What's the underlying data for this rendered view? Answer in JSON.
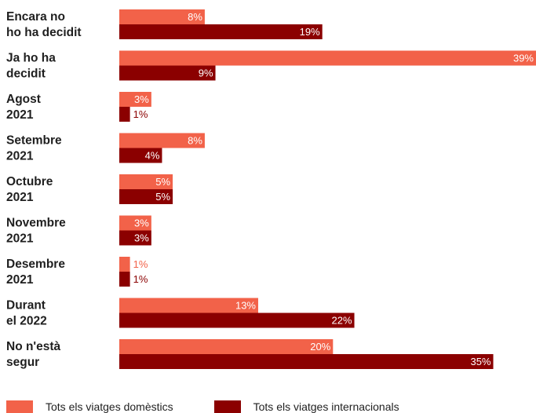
{
  "chart_data": {
    "type": "bar",
    "orientation": "horizontal",
    "categories": [
      [
        "Encara no",
        "ho ha decidit"
      ],
      [
        "Ja ho ha",
        "decidit"
      ],
      [
        "Agost",
        "2021"
      ],
      [
        "Setembre",
        "2021"
      ],
      [
        "Octubre",
        "2021"
      ],
      [
        "Novembre",
        "2021"
      ],
      [
        "Desembre",
        "2021"
      ],
      [
        "Durant",
        "el 2022"
      ],
      [
        "No n'està",
        "segur"
      ]
    ],
    "series": [
      {
        "name": "Tots els viatges domèstics",
        "color": "#f26249",
        "values": [
          8,
          39,
          3,
          8,
          5,
          3,
          1,
          13,
          20
        ],
        "labels": [
          "8%",
          "39%",
          "3%",
          "8%",
          "5%",
          "3%",
          "1%",
          "13%",
          "20%"
        ]
      },
      {
        "name": "Tots els viatges internacionals",
        "color": "#8b0000",
        "values": [
          19,
          9,
          1,
          4,
          5,
          3,
          1,
          22,
          35
        ],
        "labels": [
          "19%",
          "9%",
          "1%",
          "4%",
          "5%",
          "3%",
          "1%",
          "22%",
          "35%"
        ]
      }
    ],
    "xlim": [
      0,
      39
    ],
    "grid": false,
    "legend_position": "bottom"
  }
}
